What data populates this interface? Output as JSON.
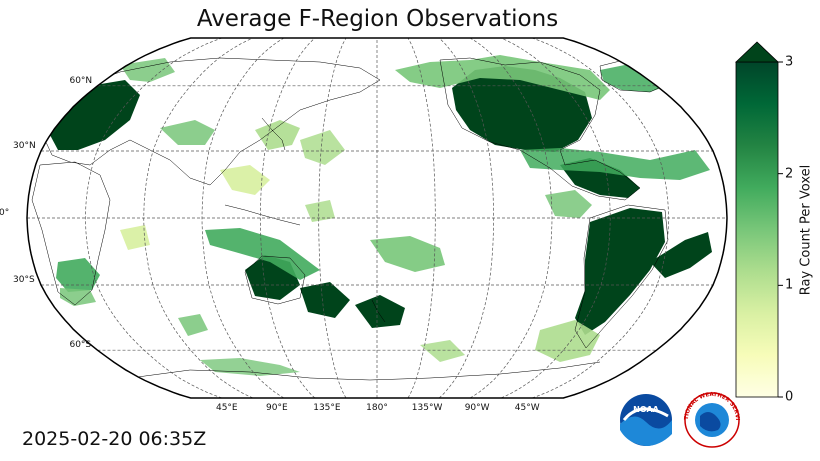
{
  "title": "Average F-Region Observations",
  "timestamp": "2025-02-20 06:35Z",
  "map": {
    "projection": "robinson",
    "central_longitude": 180,
    "graticule_step_deg": 30,
    "lat_labels": [
      "60°N",
      "30°N",
      "0°",
      "30°S",
      "60°S"
    ],
    "lon_labels": [
      "45°E",
      "90°E",
      "135°E",
      "180°",
      "135°W",
      "90°W",
      "45°W"
    ]
  },
  "colorbar": {
    "title": "Ray Count Per Voxel",
    "min": 0,
    "max": 3,
    "extend": "max",
    "tick_labels": [
      "0",
      "1",
      "2",
      "3"
    ],
    "colors": [
      "#ffffe5",
      "#f7fcb9",
      "#d9f0a3",
      "#addd8e",
      "#78c679",
      "#41ab5d",
      "#238443",
      "#006837",
      "#004529"
    ]
  },
  "logos": {
    "noaa_text": "NOAA",
    "nws_text": "NATIONAL WEATHER SERVICE"
  }
}
